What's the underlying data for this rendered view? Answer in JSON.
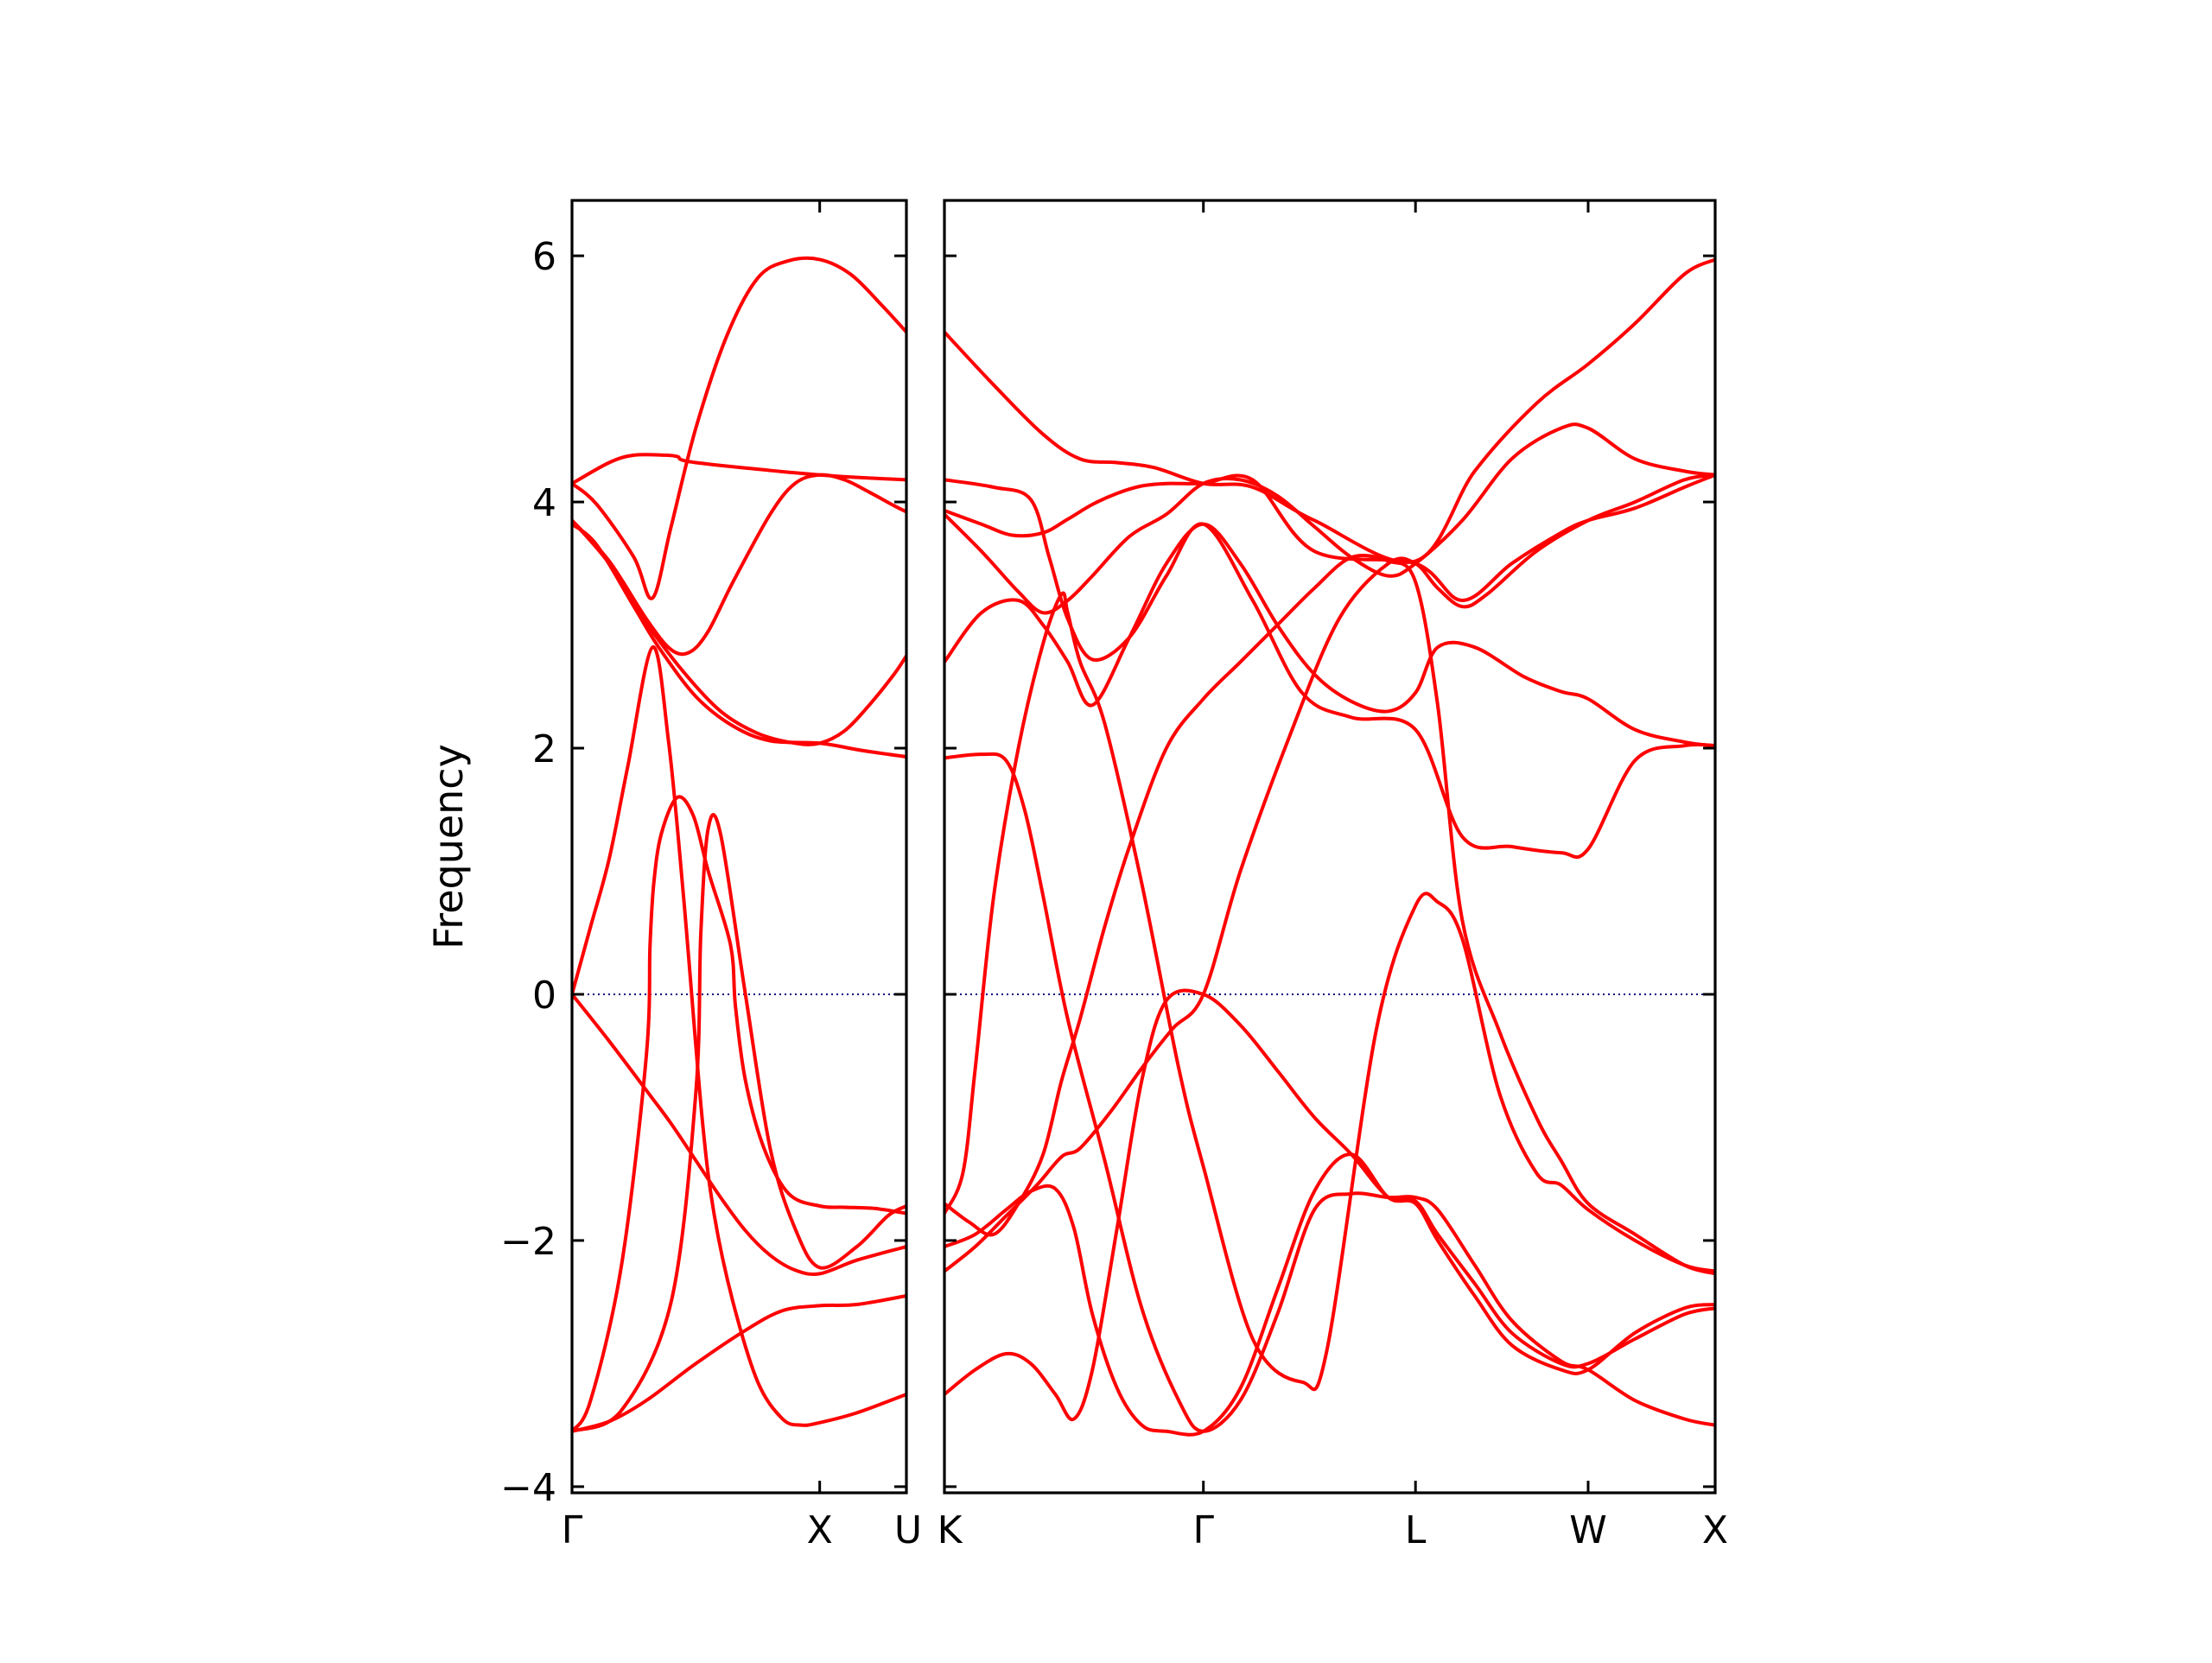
{
  "chart_data": {
    "type": "line",
    "title": "",
    "ylabel": "Frequency",
    "ylim": [
      -4.05,
      6.45
    ],
    "yticks": [
      -4,
      -2,
      0,
      2,
      4,
      6
    ],
    "ytick_labels": [
      "−4",
      "−2",
      "0",
      "2",
      "4",
      "6"
    ],
    "grid": false,
    "colors": {
      "bands": "#ff0000",
      "zero_line": "#000080"
    },
    "zero_line": {
      "y": 0,
      "style": "dotted"
    },
    "panels": [
      {
        "name": "panel-gamma-x-u",
        "x_range": [
          0,
          2.7
        ],
        "ticks": [
          {
            "x": 0,
            "label": "Γ"
          },
          {
            "x": 2,
            "label": "X"
          },
          {
            "x": 2.7,
            "label": "U"
          }
        ],
        "series": [
          {
            "x": [
              0,
              0.3,
              0.5,
              0.75,
              0.85,
              1.0,
              2.0,
              2.7
            ],
            "y": [
              4.15,
              4.32,
              4.38,
              4.38,
              4.37,
              4.32,
              4.22,
              4.18
            ]
          },
          {
            "x": [
              0,
              0.2,
              0.5,
              0.65,
              0.8,
              1.0,
              1.25,
              1.5,
              1.75,
              2.0,
              2.25,
              2.5,
              2.7
            ],
            "y": [
              4.15,
              3.98,
              3.55,
              3.22,
              3.8,
              4.6,
              5.35,
              5.82,
              5.96,
              5.97,
              5.85,
              5.6,
              5.38
            ]
          },
          {
            "x": [
              0,
              0.3,
              0.6,
              0.8,
              0.95,
              1.1,
              1.3,
              1.6,
              1.8,
              2.0,
              2.2,
              2.4,
              2.6,
              2.7
            ],
            "y": [
              3.85,
              3.52,
              3.05,
              2.8,
              2.78,
              2.95,
              3.35,
              3.9,
              4.15,
              4.22,
              4.18,
              4.08,
              3.97,
              3.92
            ]
          },
          {
            "x": [
              0,
              0.3,
              0.6,
              0.9,
              1.2,
              1.5,
              1.8,
              2.0,
              2.2,
              2.4,
              2.6,
              2.7
            ],
            "y": [
              3.85,
              3.5,
              3.02,
              2.62,
              2.3,
              2.12,
              2.04,
              2.04,
              2.14,
              2.35,
              2.6,
              2.75
            ]
          },
          {
            "x": [
              0,
              0.2,
              0.5,
              0.7,
              1.0,
              1.3,
              1.6,
              2.0,
              2.35,
              2.7
            ],
            "y": [
              3.82,
              3.65,
              3.15,
              2.82,
              2.42,
              2.18,
              2.06,
              2.04,
              1.98,
              1.93
            ]
          },
          {
            "x": [
              0,
              0.15,
              0.3,
              0.45,
              0.65,
              0.78,
              0.9,
              1.05,
              1.15,
              1.3,
              1.5,
              1.7,
              1.85,
              2.0,
              2.3,
              2.7
            ],
            "y": [
              0.0,
              0.55,
              1.1,
              1.85,
              2.82,
              2.05,
              0.8,
              -1.0,
              -1.8,
              -2.5,
              -3.15,
              -3.45,
              -3.5,
              -3.48,
              -3.4,
              -3.25
            ]
          },
          {
            "x": [
              0,
              0.3,
              0.6,
              0.8,
              1.0,
              1.2,
              1.4,
              1.6,
              1.8,
              2.0,
              2.3,
              2.7
            ],
            "y": [
              0.0,
              -0.38,
              -0.78,
              -1.05,
              -1.35,
              -1.65,
              -1.92,
              -2.12,
              -2.24,
              -2.27,
              -2.16,
              -2.05
            ]
          },
          {
            "x": [
              0,
              0.15,
              0.4,
              0.6,
              0.63,
              0.66,
              0.72,
              0.85,
              0.98,
              1.1,
              1.28,
              1.32,
              1.4,
              1.55,
              1.75,
              2.0,
              2.2,
              2.45,
              2.7
            ],
            "y": [
              -3.55,
              -3.3,
              -2.2,
              -0.5,
              0.4,
              0.9,
              1.3,
              1.6,
              1.45,
              1.0,
              0.4,
              -0.1,
              -0.7,
              -1.25,
              -1.62,
              -1.72,
              -1.73,
              -1.74,
              -1.78
            ]
          },
          {
            "x": [
              0,
              0.4,
              0.8,
              1.0,
              1.04,
              1.1,
              1.2,
              1.4,
              1.6,
              1.8,
              2.0,
              2.3,
              2.55,
              2.7
            ],
            "y": [
              -3.55,
              -3.38,
              -2.5,
              -0.8,
              0.5,
              1.35,
              1.3,
              0.0,
              -1.25,
              -1.9,
              -2.22,
              -2.05,
              -1.8,
              -1.72
            ]
          },
          {
            "x": [
              0,
              0.3,
              0.6,
              1.0,
              1.4,
              1.7,
              2.0,
              2.3,
              2.7
            ],
            "y": [
              -3.55,
              -3.47,
              -3.3,
              -3.0,
              -2.73,
              -2.57,
              -2.53,
              -2.52,
              -2.45
            ]
          }
        ]
      },
      {
        "name": "panel-k-gamma-l-w-x",
        "x_range": [
          0,
          6.25
        ],
        "ticks": [
          {
            "x": 0,
            "label": "K"
          },
          {
            "x": 2.1,
            "label": "Γ"
          },
          {
            "x": 3.82,
            "label": "L"
          },
          {
            "x": 5.22,
            "label": "W"
          },
          {
            "x": 6.25,
            "label": "X"
          }
        ],
        "series": [
          {
            "x": [
              0,
              0.4,
              0.8,
              1.1,
              1.4,
              1.7,
              2.1,
              2.5,
              3.0,
              3.82,
              4.3,
              4.8,
              5.22,
              5.6,
              6.0,
              6.25
            ],
            "y": [
              5.38,
              4.95,
              4.55,
              4.35,
              4.32,
              4.28,
              4.15,
              4.12,
              3.85,
              3.52,
              4.25,
              4.8,
              5.12,
              5.45,
              5.85,
              5.97
            ]
          },
          {
            "x": [
              0,
              0.4,
              0.7,
              0.85,
              1.0,
              1.2,
              1.5,
              1.8,
              2.1,
              2.5,
              2.9,
              3.3,
              3.82,
              4.2,
              4.6,
              5.0,
              5.22,
              5.6,
              6.0,
              6.25
            ],
            "y": [
              4.18,
              4.12,
              4.02,
              3.55,
              3.05,
              2.72,
              2.9,
              3.4,
              3.82,
              3.2,
              2.45,
              2.25,
              2.15,
              1.28,
              1.2,
              1.15,
              1.18,
              1.9,
              2.02,
              2.02
            ]
          },
          {
            "x": [
              0,
              0.3,
              0.55,
              0.8,
              1.0,
              1.2,
              1.4,
              1.6,
              1.8,
              2.1,
              2.5,
              3.0,
              3.82,
              4.2,
              4.6,
              5.0,
              5.22,
              5.6,
              6.0,
              6.25
            ],
            "y": [
              3.93,
              3.82,
              3.73,
              3.75,
              3.86,
              3.98,
              4.07,
              4.13,
              4.15,
              4.15,
              4.18,
              3.6,
              3.5,
              3.2,
              3.5,
              3.75,
              3.85,
              3.95,
              4.12,
              4.22
            ]
          },
          {
            "x": [
              0,
              0.3,
              0.6,
              0.8,
              1.0,
              1.2,
              1.5,
              1.8,
              2.1,
              2.4,
              2.7,
              3.0,
              3.3,
              3.6,
              3.82,
              4.2,
              4.6,
              5.0,
              5.22,
              5.6,
              6.0,
              6.25
            ],
            "y": [
              3.9,
              3.6,
              3.27,
              3.1,
              3.2,
              3.4,
              3.72,
              3.9,
              4.15,
              4.18,
              4.05,
              3.8,
              3.55,
              3.4,
              3.5,
              3.85,
              4.35,
              4.6,
              4.6,
              4.35,
              4.25,
              4.22
            ]
          },
          {
            "x": [
              0,
              0.3,
              0.6,
              0.8,
              1.0,
              1.2,
              1.5,
              1.8,
              2.1,
              2.4,
              2.7,
              3.0,
              3.3,
              3.6,
              3.82,
              4.0,
              4.3,
              4.7,
              5.0,
              5.22,
              5.6,
              6.0,
              6.25
            ],
            "y": [
              2.7,
              3.1,
              3.2,
              3.0,
              2.7,
              2.35,
              2.9,
              3.5,
              3.82,
              3.5,
              3.0,
              2.6,
              2.38,
              2.3,
              2.45,
              2.82,
              2.82,
              2.58,
              2.46,
              2.4,
              2.15,
              2.05,
              2.02
            ]
          },
          {
            "x": [
              0,
              0.3,
              0.5,
              0.65,
              0.8,
              1.0,
              1.3,
              1.6,
              1.9,
              2.1,
              2.4,
              2.7,
              3.0,
              3.3,
              3.6,
              3.82,
              4.0,
              4.3,
              4.6,
              5.0,
              5.22,
              5.6,
              6.0,
              6.25
            ],
            "y": [
              1.92,
              1.95,
              1.9,
              1.5,
              0.8,
              -0.2,
              -1.35,
              -2.55,
              -3.3,
              -3.55,
              -3.3,
              -2.6,
              -1.75,
              -1.62,
              -1.65,
              -1.65,
              -1.75,
              -2.2,
              -2.65,
              -2.98,
              -3.05,
              -3.3,
              -3.45,
              -3.5
            ]
          },
          {
            "x": [
              0,
              0.25,
              0.5,
              0.7,
              0.9,
              1.05,
              1.2,
              1.4,
              1.6,
              1.8,
              2.1,
              2.4,
              2.7,
              3.0,
              3.3,
              3.6,
              3.82,
              4.0,
              4.3,
              4.6,
              5.0,
              5.22,
              5.6,
              6.0,
              6.25
            ],
            "y": [
              -3.25,
              -3.05,
              -2.92,
              -3.0,
              -3.25,
              -3.45,
              -3.05,
              -1.9,
              -0.7,
              -0.05,
              0.0,
              -0.25,
              -0.62,
              -1.0,
              -1.3,
              -1.65,
              -1.7,
              -2.0,
              -2.45,
              -2.85,
              -3.05,
              -3.05,
              -2.75,
              -2.55,
              -2.52
            ]
          },
          {
            "x": [
              0,
              0.25,
              0.5,
              0.7,
              0.9,
              1.05,
              1.2,
              1.4,
              1.6,
              1.8,
              2.1,
              2.4,
              2.7,
              3.0,
              3.3,
              3.6,
              3.82,
              4.0,
              4.3,
              4.6,
              5.0,
              5.22,
              5.6,
              6.0,
              6.25
            ],
            "y": [
              -2.05,
              -1.95,
              -1.75,
              -1.6,
              -1.58,
              -1.9,
              -2.6,
              -3.2,
              -3.5,
              -3.55,
              -3.55,
              -3.2,
              -2.4,
              -1.6,
              -1.3,
              -1.65,
              -1.68,
              -1.95,
              -2.35,
              -2.75,
              -3.0,
              -3.0,
              -2.8,
              -2.6,
              -2.55
            ]
          },
          {
            "x": [
              0,
              0.2,
              0.4,
              0.6,
              0.8,
              0.95,
              1.1,
              1.3,
              1.5,
              1.8,
              2.1,
              2.4,
              2.7,
              3.0,
              3.3,
              3.6,
              3.82,
              4.0,
              4.2,
              4.5,
              4.8,
              5.0,
              5.22,
              5.6,
              6.0,
              6.25
            ],
            "y": [
              -1.7,
              -1.85,
              -1.95,
              -1.7,
              -1.3,
              -0.7,
              -0.2,
              0.55,
              1.2,
              2.0,
              2.4,
              2.7,
              3.0,
              3.3,
              3.55,
              3.52,
              3.35,
              2.35,
              0.6,
              -0.3,
              -1.0,
              -1.35,
              -1.7,
              -1.95,
              -2.2,
              -2.27
            ]
          },
          {
            "x": [
              0,
              0.25,
              0.5,
              0.75,
              0.95,
              1.1,
              1.35,
              1.6,
              1.85,
              2.1,
              2.4,
              2.8,
              3.2,
              3.6,
              3.82,
              4.0,
              4.2,
              4.4,
              4.8,
              5.22,
              5.6,
              6.0,
              6.25
            ],
            "y": [
              -2.25,
              -2.05,
              -1.8,
              -1.55,
              -1.32,
              -1.25,
              -0.95,
              -0.6,
              -0.28,
              0.0,
              1.0,
              2.1,
              3.05,
              3.5,
              3.5,
              3.3,
              3.15,
              3.25,
              3.6,
              3.85,
              4.0,
              4.18,
              4.22
            ]
          },
          {
            "x": [
              0,
              0.15,
              0.25,
              0.4,
              0.6,
              0.8,
              0.95,
              1.0,
              1.1,
              1.3,
              1.6,
              1.9,
              2.1,
              2.5,
              2.9,
              3.1,
              3.5,
              3.82,
              4.0,
              4.2,
              4.5,
              4.8,
              5.0,
              5.22,
              5.6,
              6.0,
              6.25
            ],
            "y": [
              -1.78,
              -1.45,
              -0.6,
              0.8,
              2.0,
              2.85,
              3.25,
              3.1,
              2.7,
              2.2,
              0.9,
              -0.6,
              -1.4,
              -2.8,
              -3.15,
              -2.9,
              -0.3,
              0.72,
              0.75,
              0.45,
              -0.8,
              -1.45,
              -1.55,
              -1.75,
              -2.0,
              -2.2,
              -2.25
            ]
          }
        ]
      }
    ]
  }
}
